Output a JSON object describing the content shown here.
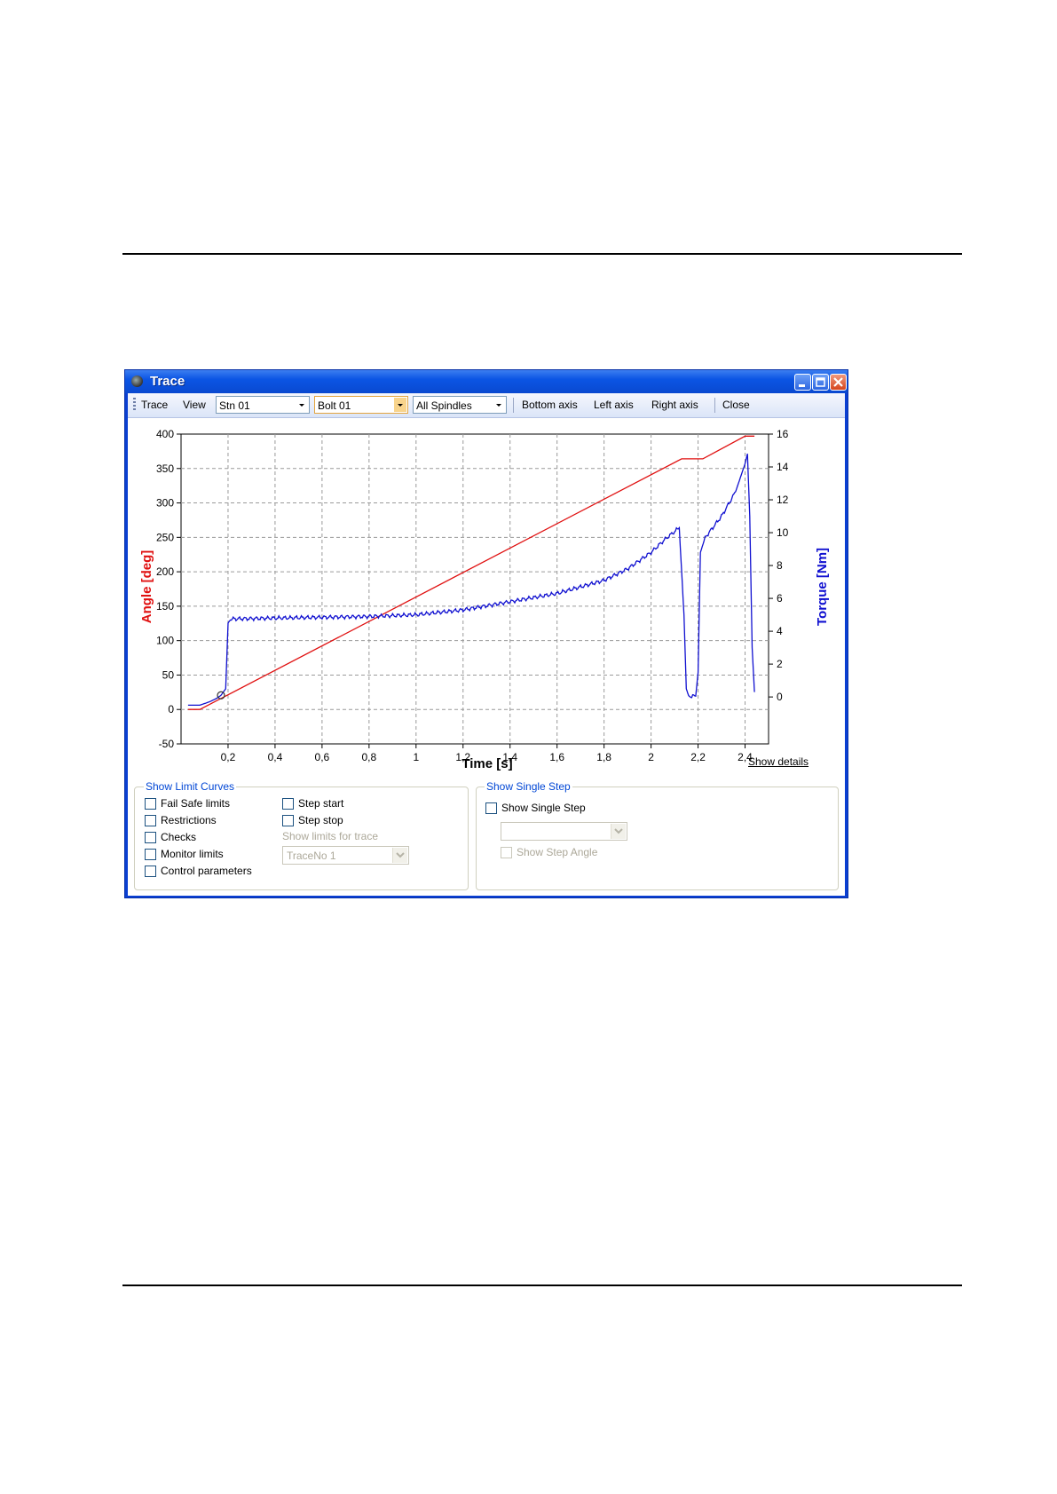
{
  "window": {
    "title": "Trace"
  },
  "toolbar": {
    "trace_label": "Trace",
    "view_label": "View",
    "station": "Stn 01",
    "bolt": "Bolt 01",
    "spindles": "All Spindles",
    "bottom_axis": "Bottom axis",
    "left_axis": "Left axis",
    "right_axis": "Right axis",
    "close": "Close"
  },
  "chart_data": {
    "type": "line",
    "xlabel": "Time [s]",
    "ylabel": "Angle [deg]",
    "y2label": "Torque [Nm]",
    "xlim": [
      0,
      2.5
    ],
    "ylim": [
      -50,
      400
    ],
    "y2lim": [
      -2.857,
      16
    ],
    "x_ticks": [
      "0,2",
      "0,4",
      "0,6",
      "0,8",
      "1",
      "1,2",
      "1,4",
      "1,6",
      "1,8",
      "2",
      "2,2",
      "2,4"
    ],
    "x_tick_values": [
      0.2,
      0.4,
      0.6,
      0.8,
      1.0,
      1.2,
      1.4,
      1.6,
      1.8,
      2.0,
      2.2,
      2.4
    ],
    "y_ticks": [
      400,
      350,
      300,
      250,
      200,
      150,
      100,
      50,
      0,
      -50
    ],
    "y2_ticks": [
      16,
      14,
      12,
      10,
      8,
      6,
      4,
      2,
      0
    ],
    "grid": true,
    "series": [
      {
        "axis": "left",
        "color": "#e01010",
        "points": [
          [
            0.03,
            0
          ],
          [
            0.08,
            0
          ],
          [
            2.13,
            364
          ],
          [
            2.22,
            364
          ],
          [
            2.4,
            397
          ],
          [
            2.44,
            397
          ]
        ]
      },
      {
        "axis": "right",
        "color": "#1010d0",
        "points": [
          [
            0.03,
            -0.5
          ],
          [
            0.08,
            -0.5
          ],
          [
            0.12,
            -0.3
          ],
          [
            0.15,
            -0.1
          ],
          [
            0.17,
            0.1
          ],
          [
            0.19,
            0.5
          ],
          [
            0.2,
            4.5
          ],
          [
            0.21,
            4.75
          ],
          [
            0.4,
            4.8
          ],
          [
            0.6,
            4.85
          ],
          [
            0.8,
            4.9
          ],
          [
            1.0,
            5.0
          ],
          [
            1.2,
            5.3
          ],
          [
            1.4,
            5.8
          ],
          [
            1.6,
            6.3
          ],
          [
            1.8,
            7.1
          ],
          [
            1.9,
            7.8
          ],
          [
            2.0,
            8.8
          ],
          [
            2.06,
            9.6
          ],
          [
            2.12,
            10.3
          ],
          [
            2.14,
            5.0
          ],
          [
            2.15,
            0.5
          ],
          [
            2.16,
            0.05
          ],
          [
            2.19,
            0.05
          ],
          [
            2.2,
            1.5
          ],
          [
            2.21,
            8.8
          ],
          [
            2.23,
            9.7
          ],
          [
            2.3,
            11.0
          ],
          [
            2.36,
            12.5
          ],
          [
            2.4,
            14.2
          ],
          [
            2.41,
            14.8
          ],
          [
            2.42,
            11.0
          ],
          [
            2.43,
            3.0
          ],
          [
            2.44,
            0.3
          ]
        ]
      }
    ]
  },
  "show_details": "Show details",
  "limit_curves": {
    "legend": "Show Limit Curves",
    "fail_safe": "Fail Safe limits",
    "restrictions": "Restrictions",
    "checks": "Checks",
    "monitor": "Monitor limits",
    "control": "Control parameters",
    "step_start": "Step start",
    "step_stop": "Step stop",
    "show_limits_for_trace": "Show limits for trace",
    "trace_no": "TraceNo 1"
  },
  "single_step": {
    "legend": "Show Single Step",
    "show_single_step": "Show Single Step",
    "step_value": "",
    "show_step_angle": "Show Step Angle"
  },
  "colors": {
    "angle": "#e01010",
    "torque": "#1010d0",
    "titlebar": "#0a49d0",
    "group_legend": "#0046d5"
  },
  "icons": {
    "minimize": "minimize-icon",
    "maximize": "maximize-icon",
    "close": "close-icon",
    "dropdown": "chevron-down-icon"
  }
}
